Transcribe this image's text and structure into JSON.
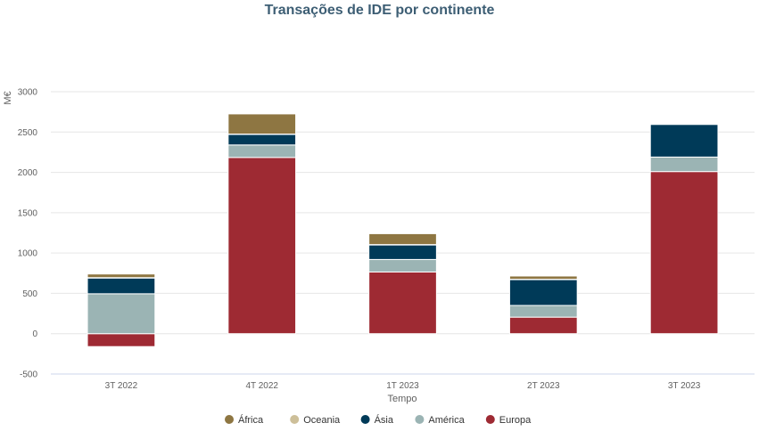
{
  "chart_data": {
    "type": "bar",
    "stacked": true,
    "title": "Transações de IDE por continente",
    "xlabel": "Tempo",
    "ylabel": "M€",
    "ylim": [
      -500,
      3000
    ],
    "yticks": [
      -500,
      0,
      500,
      1000,
      1500,
      2000,
      2500,
      3000
    ],
    "grid": true,
    "legend_position": "bottom",
    "categories": [
      "3T 2022",
      "4T 2022",
      "1T 2023",
      "2T 2023",
      "3T 2023"
    ],
    "series": [
      {
        "name": "Europa",
        "color": "#9e2a33",
        "values": [
          -160,
          2185,
          765,
          205,
          2010
        ]
      },
      {
        "name": "América",
        "color": "#9bb4b4",
        "values": [
          495,
          155,
          155,
          145,
          180
        ]
      },
      {
        "name": "Ásia",
        "color": "#003a58",
        "values": [
          195,
          130,
          180,
          320,
          405
        ]
      },
      {
        "name": "Oceania",
        "color": "#cdbf99",
        "values": [
          5,
          5,
          5,
          5,
          10
        ]
      },
      {
        "name": "África",
        "color": "#8e7642",
        "values": [
          45,
          250,
          135,
          40,
          5
        ]
      }
    ],
    "legend_order": [
      "África",
      "Oceania",
      "Ásia",
      "América",
      "Europa"
    ]
  }
}
